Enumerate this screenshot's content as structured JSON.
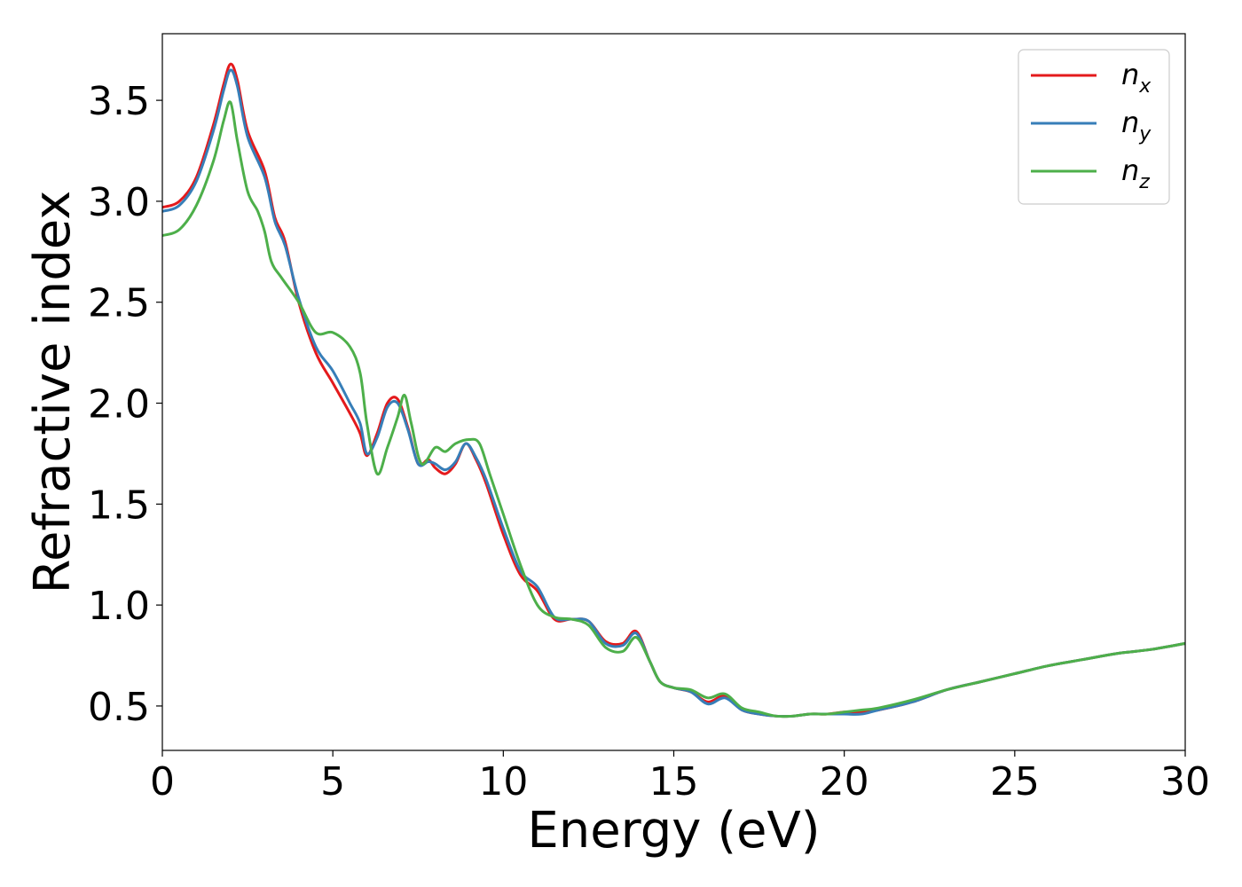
{
  "chart_data": {
    "type": "line",
    "title": "",
    "xlabel": "Energy (eV)",
    "ylabel": "Refractive index",
    "xlim": [
      0,
      30
    ],
    "ylim": [
      0.28,
      3.83
    ],
    "xticks": [
      0,
      5,
      10,
      15,
      20,
      25,
      30
    ],
    "xtick_labels": [
      "0",
      "5",
      "10",
      "15",
      "20",
      "25",
      "30"
    ],
    "yticks": [
      0.5,
      1.0,
      1.5,
      2.0,
      2.5,
      3.0,
      3.5
    ],
    "ytick_labels": [
      "0.5",
      "1.0",
      "1.5",
      "2.0",
      "2.5",
      "3.0",
      "3.5"
    ],
    "grid": false,
    "legend_position": "top-right",
    "series": [
      {
        "name": "n",
        "subscript": "x",
        "color": "#e41a1c",
        "x": [
          0,
          0.5,
          1.0,
          1.5,
          1.8,
          2.0,
          2.2,
          2.5,
          3.0,
          3.3,
          3.6,
          4.0,
          4.5,
          5.0,
          5.5,
          5.8,
          6.0,
          6.3,
          6.6,
          6.9,
          7.2,
          7.5,
          7.8,
          8.0,
          8.3,
          8.6,
          8.9,
          9.2,
          9.5,
          10.0,
          10.5,
          11.0,
          11.5,
          12.0,
          12.5,
          13.0,
          13.5,
          13.9,
          14.3,
          14.6,
          15.0,
          15.5,
          16.0,
          16.5,
          17.0,
          17.5,
          18.0,
          18.5,
          19.0,
          19.5,
          20.0,
          20.5,
          21.0,
          22.0,
          23.0,
          24.0,
          25.0,
          26.0,
          27.0,
          28.0,
          29.0,
          30.0
        ],
        "y": [
          2.97,
          3.0,
          3.12,
          3.38,
          3.58,
          3.68,
          3.6,
          3.35,
          3.15,
          2.92,
          2.8,
          2.5,
          2.25,
          2.1,
          1.95,
          1.85,
          1.74,
          1.85,
          2.0,
          2.02,
          1.88,
          1.7,
          1.72,
          1.68,
          1.65,
          1.7,
          1.8,
          1.72,
          1.6,
          1.35,
          1.15,
          1.07,
          0.93,
          0.93,
          0.92,
          0.82,
          0.81,
          0.87,
          0.72,
          0.62,
          0.59,
          0.57,
          0.52,
          0.55,
          0.48,
          0.46,
          0.45,
          0.45,
          0.46,
          0.46,
          0.47,
          0.47,
          0.48,
          0.52,
          0.58,
          0.62,
          0.66,
          0.7,
          0.73,
          0.76,
          0.78,
          0.81
        ]
      },
      {
        "name": "n",
        "subscript": "y",
        "color": "#377eb8",
        "x": [
          0,
          0.5,
          1.0,
          1.5,
          1.8,
          2.0,
          2.2,
          2.5,
          3.0,
          3.3,
          3.6,
          4.0,
          4.5,
          5.0,
          5.5,
          5.8,
          6.0,
          6.3,
          6.6,
          6.9,
          7.2,
          7.5,
          7.8,
          8.0,
          8.3,
          8.6,
          8.9,
          9.2,
          9.5,
          10.0,
          10.5,
          11.0,
          11.5,
          12.0,
          12.5,
          13.0,
          13.5,
          13.9,
          14.3,
          14.6,
          15.0,
          15.5,
          16.0,
          16.5,
          17.0,
          17.5,
          18.0,
          18.5,
          19.0,
          19.5,
          20.0,
          20.5,
          21.0,
          22.0,
          23.0,
          24.0,
          25.0,
          26.0,
          27.0,
          28.0,
          29.0,
          30.0
        ],
        "y": [
          2.95,
          2.98,
          3.1,
          3.35,
          3.55,
          3.65,
          3.57,
          3.32,
          3.12,
          2.9,
          2.78,
          2.52,
          2.28,
          2.16,
          2.0,
          1.9,
          1.75,
          1.83,
          1.98,
          2.0,
          1.87,
          1.7,
          1.71,
          1.7,
          1.67,
          1.71,
          1.8,
          1.73,
          1.62,
          1.38,
          1.17,
          1.09,
          0.94,
          0.93,
          0.92,
          0.81,
          0.8,
          0.86,
          0.72,
          0.62,
          0.59,
          0.57,
          0.51,
          0.54,
          0.48,
          0.46,
          0.45,
          0.45,
          0.46,
          0.46,
          0.46,
          0.46,
          0.48,
          0.52,
          0.58,
          0.62,
          0.66,
          0.7,
          0.73,
          0.76,
          0.78,
          0.81
        ]
      },
      {
        "name": "n",
        "subscript": "z",
        "color": "#4daf4a",
        "x": [
          0,
          0.5,
          1.0,
          1.5,
          1.8,
          2.0,
          2.2,
          2.5,
          2.8,
          3.0,
          3.2,
          3.5,
          4.0,
          4.5,
          5.0,
          5.5,
          5.8,
          6.0,
          6.3,
          6.6,
          6.9,
          7.1,
          7.3,
          7.6,
          8.0,
          8.3,
          8.6,
          9.0,
          9.3,
          9.6,
          10.0,
          10.5,
          11.0,
          11.5,
          12.0,
          12.5,
          13.0,
          13.5,
          13.9,
          14.3,
          14.6,
          15.0,
          15.5,
          16.0,
          16.5,
          17.0,
          17.5,
          18.0,
          18.5,
          19.0,
          19.5,
          20.0,
          20.5,
          21.0,
          22.0,
          23.0,
          24.0,
          25.0,
          26.0,
          27.0,
          28.0,
          29.0,
          30.0
        ],
        "y": [
          2.83,
          2.86,
          2.98,
          3.2,
          3.4,
          3.49,
          3.3,
          3.05,
          2.95,
          2.85,
          2.7,
          2.62,
          2.5,
          2.35,
          2.35,
          2.28,
          2.15,
          1.9,
          1.65,
          1.78,
          1.93,
          2.04,
          1.9,
          1.7,
          1.78,
          1.76,
          1.8,
          1.82,
          1.8,
          1.65,
          1.45,
          1.2,
          1.0,
          0.94,
          0.93,
          0.9,
          0.79,
          0.77,
          0.84,
          0.72,
          0.62,
          0.59,
          0.58,
          0.54,
          0.56,
          0.49,
          0.47,
          0.45,
          0.45,
          0.46,
          0.46,
          0.47,
          0.48,
          0.49,
          0.53,
          0.58,
          0.62,
          0.66,
          0.7,
          0.73,
          0.76,
          0.78,
          0.81
        ]
      }
    ]
  }
}
